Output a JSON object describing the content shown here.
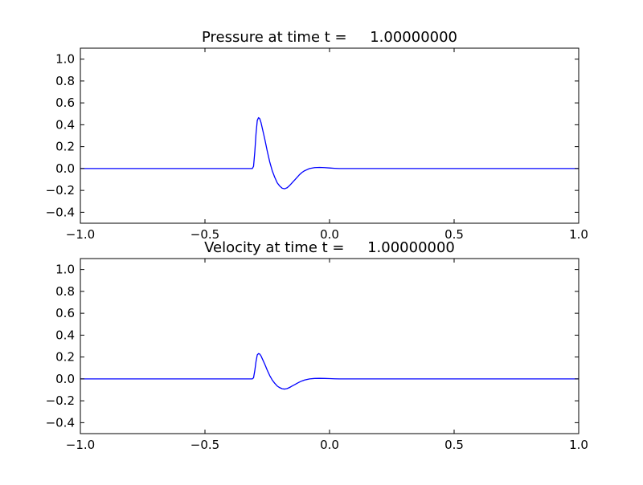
{
  "chart_data": [
    {
      "type": "line",
      "title": "Pressure at time t =     1.00000000",
      "xlim": [
        -1.0,
        1.0
      ],
      "ylim": [
        -0.5,
        1.1
      ],
      "x_ticks": [
        "−1.0",
        "−0.5",
        "0.0",
        "0.5",
        "1.0"
      ],
      "y_ticks": [
        "−0.4",
        "−0.2",
        "0.0",
        "0.2",
        "0.4",
        "0.6",
        "0.8",
        "1.0"
      ],
      "grid": false,
      "series": [
        {
          "color": "#0000ff",
          "x": [
            -1.0,
            -0.5,
            -0.31,
            -0.305,
            -0.3,
            -0.295,
            -0.29,
            -0.285,
            -0.28,
            -0.275,
            -0.27,
            -0.26,
            -0.25,
            -0.24,
            -0.23,
            -0.22,
            -0.21,
            -0.2,
            -0.19,
            -0.18,
            -0.17,
            -0.16,
            -0.15,
            -0.14,
            -0.13,
            -0.12,
            -0.11,
            -0.1,
            -0.08,
            -0.06,
            -0.04,
            -0.02,
            0.0,
            0.02,
            0.04,
            0.06,
            0.08,
            0.1,
            0.2,
            0.5,
            1.0
          ],
          "y": [
            0.0,
            0.0,
            0.0,
            0.02,
            0.15,
            0.32,
            0.44,
            0.465,
            0.455,
            0.42,
            0.37,
            0.27,
            0.16,
            0.06,
            -0.02,
            -0.08,
            -0.13,
            -0.16,
            -0.18,
            -0.185,
            -0.175,
            -0.155,
            -0.13,
            -0.105,
            -0.08,
            -0.055,
            -0.035,
            -0.02,
            0.0,
            0.008,
            0.01,
            0.008,
            0.005,
            0.002,
            0.0,
            0.0,
            0.0,
            0.0,
            0.0,
            0.0,
            0.0
          ]
        }
      ]
    },
    {
      "type": "line",
      "title": "Velocity at time t =     1.00000000",
      "xlim": [
        -1.0,
        1.0
      ],
      "ylim": [
        -0.5,
        1.1
      ],
      "x_ticks": [
        "−1.0",
        "−0.5",
        "0.0",
        "0.5",
        "1.0"
      ],
      "y_ticks": [
        "−0.4",
        "−0.2",
        "0.0",
        "0.2",
        "0.4",
        "0.6",
        "0.8",
        "1.0"
      ],
      "grid": false,
      "series": [
        {
          "color": "#0000ff",
          "x": [
            -1.0,
            -0.5,
            -0.31,
            -0.305,
            -0.3,
            -0.295,
            -0.29,
            -0.285,
            -0.28,
            -0.275,
            -0.27,
            -0.26,
            -0.25,
            -0.24,
            -0.23,
            -0.22,
            -0.21,
            -0.2,
            -0.19,
            -0.18,
            -0.17,
            -0.16,
            -0.15,
            -0.14,
            -0.13,
            -0.12,
            -0.11,
            -0.1,
            -0.08,
            -0.06,
            -0.04,
            -0.02,
            0.0,
            0.02,
            0.04,
            0.06,
            0.08,
            0.1,
            0.2,
            0.5,
            1.0
          ],
          "y": [
            0.0,
            0.0,
            0.0,
            0.01,
            0.075,
            0.16,
            0.22,
            0.232,
            0.227,
            0.21,
            0.185,
            0.135,
            0.08,
            0.03,
            -0.01,
            -0.04,
            -0.065,
            -0.08,
            -0.09,
            -0.093,
            -0.088,
            -0.078,
            -0.065,
            -0.053,
            -0.04,
            -0.028,
            -0.018,
            -0.01,
            0.0,
            0.004,
            0.005,
            0.004,
            0.003,
            0.001,
            0.0,
            0.0,
            0.0,
            0.0,
            0.0,
            0.0,
            0.0
          ]
        }
      ]
    }
  ]
}
